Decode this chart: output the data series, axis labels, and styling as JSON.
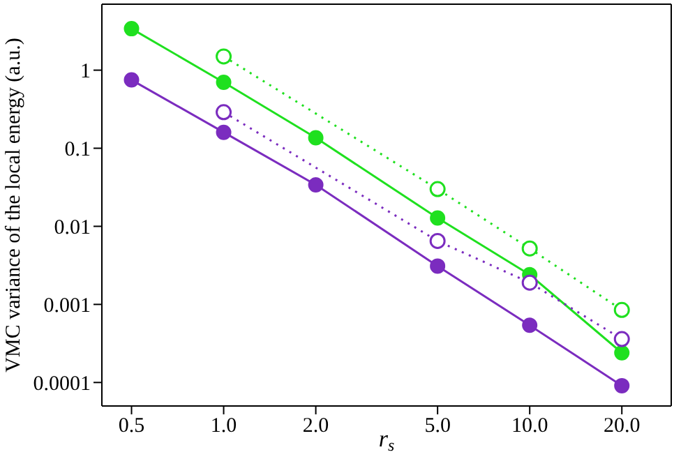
{
  "chart_data": {
    "type": "line",
    "xlabel": "r$_{s}$",
    "ylabel": "VMC variance of the local energy (a.u.)",
    "log": "xy",
    "marker": "circle",
    "xlim": [
      0.4,
      29
    ],
    "xticks": [
      {
        "value": 0.5,
        "label": "0.5"
      },
      {
        "value": 1,
        "label": "1.0"
      },
      {
        "value": 2,
        "label": "2.0"
      },
      {
        "value": 5,
        "label": "5.0"
      },
      {
        "value": 10,
        "label": "10.0"
      },
      {
        "value": 20,
        "label": "20.0"
      }
    ],
    "ylim": [
      5e-05,
      7
    ],
    "yticks": [
      0.0001,
      0.001,
      0.01,
      0.1,
      1
    ],
    "series": [
      {
        "color": "#1fe01f",
        "line_style": "solid",
        "x": [
          0.5,
          1,
          2,
          5,
          10,
          20
        ],
        "values": [
          3.4,
          0.7,
          0.136,
          0.0128,
          0.0024,
          0.00024
        ]
      },
      {
        "color": "#7b2cbf",
        "line_style": "solid",
        "x": [
          0.5,
          1,
          2,
          5,
          10,
          20
        ],
        "values": [
          0.75,
          0.16,
          0.034,
          0.0031,
          0.00054,
          9.1e-05
        ]
      },
      {
        "color": "#1fe01f",
        "line_style": "dotted",
        "x": [
          1,
          5,
          10,
          20
        ],
        "values": [
          1.5,
          0.03,
          0.0052,
          0.00085
        ]
      },
      {
        "color": "#7b2cbf",
        "line_style": "dotted",
        "x": [
          1,
          5,
          10,
          20
        ],
        "values": [
          0.29,
          0.0065,
          0.0019,
          0.00036
        ]
      }
    ]
  }
}
